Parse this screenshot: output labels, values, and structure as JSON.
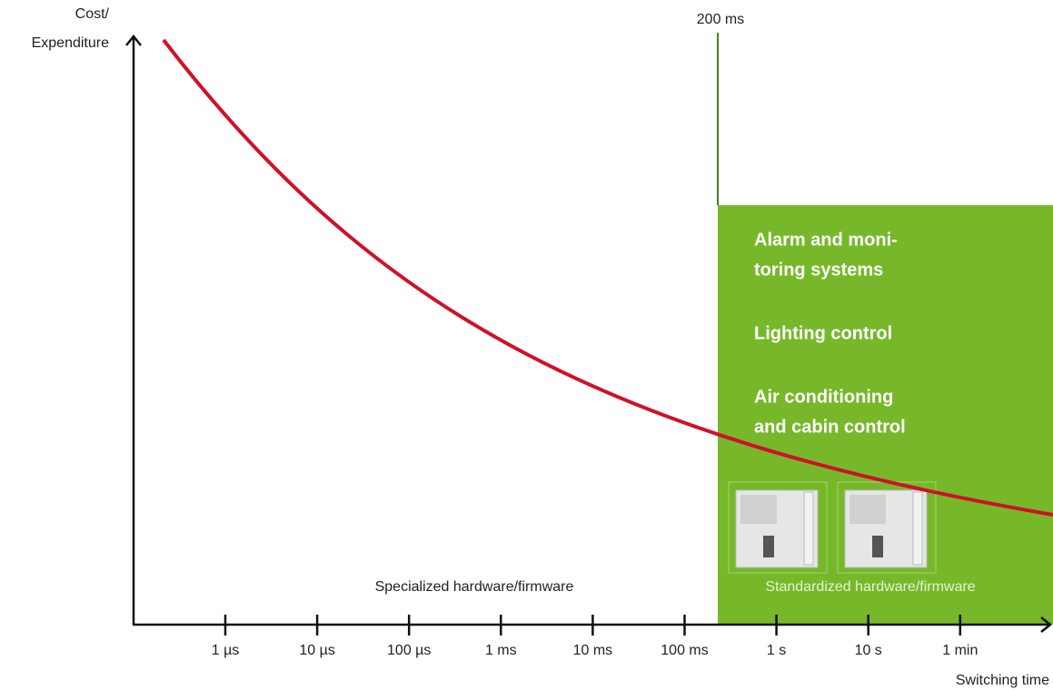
{
  "axes": {
    "y_label_lines": [
      "Cost/",
      "Expenditure"
    ],
    "x_label": "Switching time",
    "x_ticks": [
      "1 µs",
      "10 µs",
      "100 µs",
      "1 ms",
      "10 ms",
      "100 ms",
      "1 s",
      "10 s",
      "1 min"
    ]
  },
  "threshold": {
    "label": "200 ms"
  },
  "regions": {
    "specialized": "Specialized hardware/firmware",
    "standardized": "Standardized hardware/firmware"
  },
  "applications": [
    [
      "Alarm and moni-",
      "toring systems"
    ],
    [
      "Lighting control"
    ],
    [
      "Air conditioning",
      "and cabin control"
    ]
  ]
}
